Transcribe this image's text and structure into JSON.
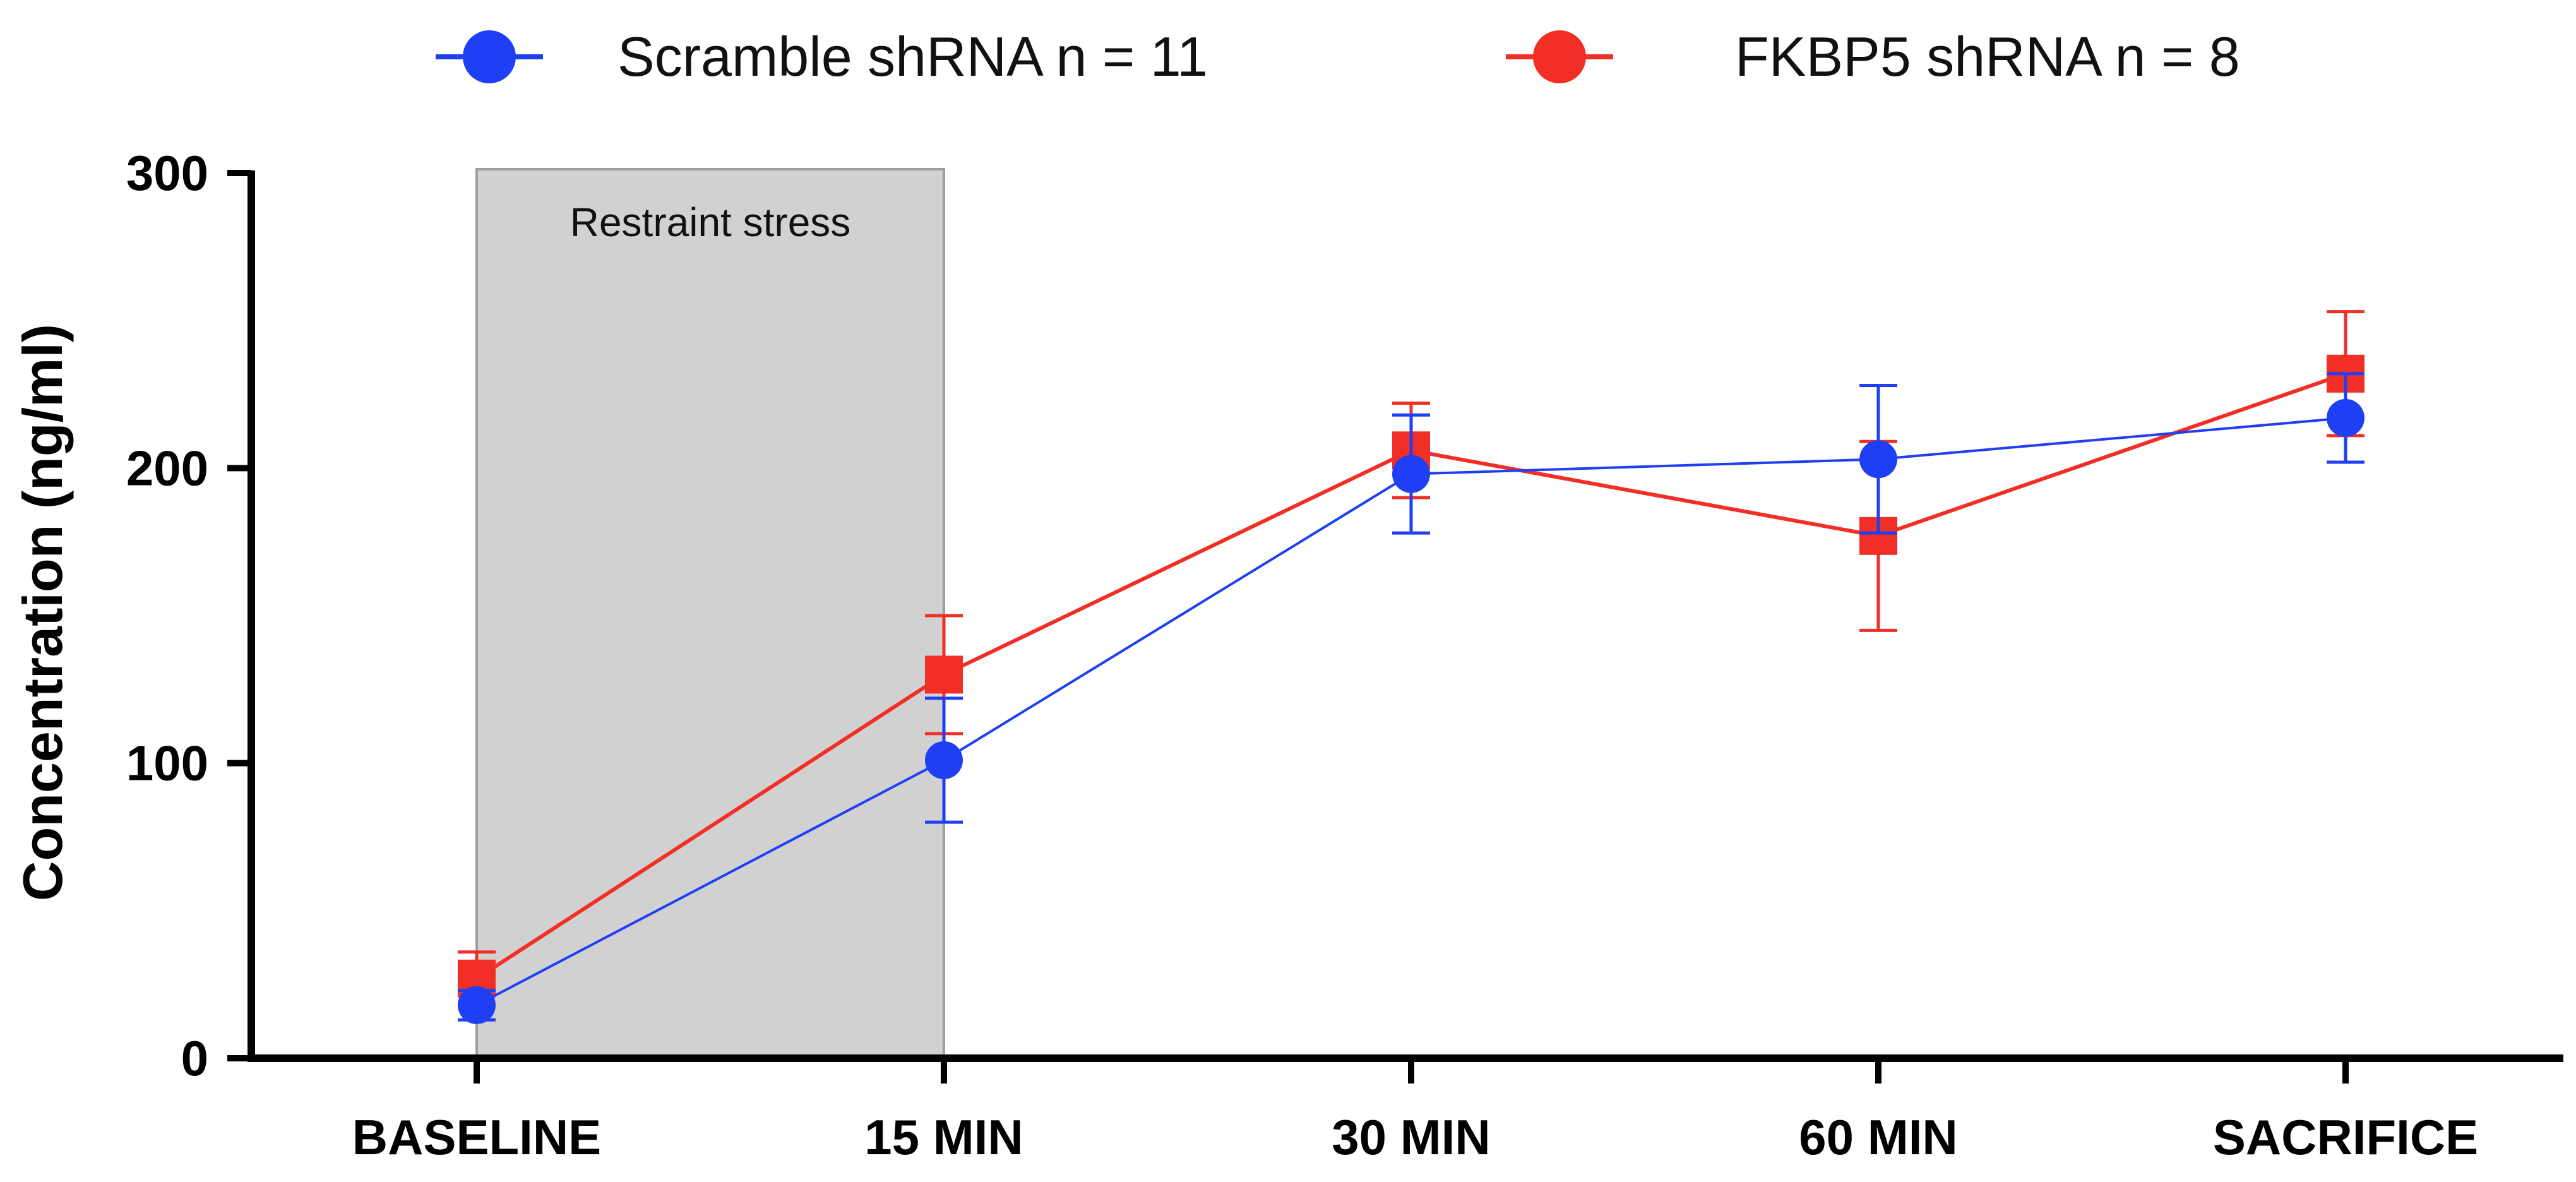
{
  "chart_data": {
    "type": "line",
    "title": "",
    "xlabel": "",
    "ylabel": "Concentration (ng/ml)",
    "categories": [
      "BASELINE",
      "15 MIN",
      "30 MIN",
      "60 MIN",
      "SACRIFICE"
    ],
    "ylim": [
      0,
      300
    ],
    "yticks": [
      0,
      100,
      200,
      300
    ],
    "legend_position": "top",
    "annotation": {
      "text": "Restraint stress",
      "from": "BASELINE",
      "to": "15 MIN"
    },
    "series": [
      {
        "name": "Scramble shRNA n = 11",
        "color": "#1f3ff5",
        "marker": "circle",
        "values": [
          18,
          101,
          198,
          203,
          217
        ],
        "error": [
          5,
          21,
          20,
          25,
          15
        ]
      },
      {
        "name": "FKBP5 shRNA n = 8",
        "color": "#f22f26",
        "marker": "square",
        "values": [
          27,
          130,
          206,
          177,
          232
        ],
        "error": [
          9,
          20,
          16,
          32,
          21
        ]
      }
    ]
  }
}
